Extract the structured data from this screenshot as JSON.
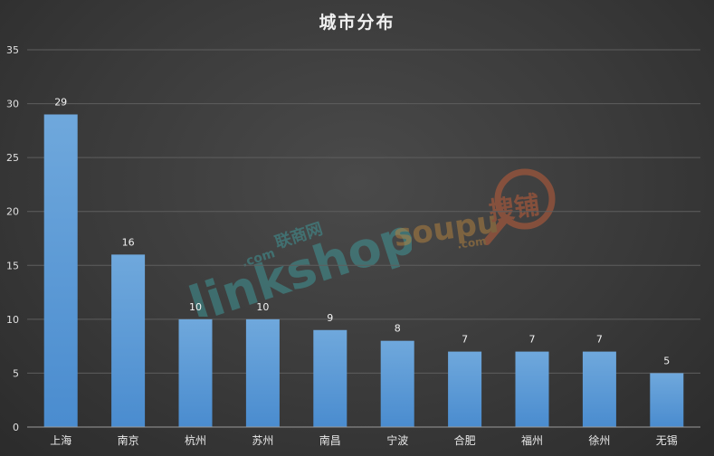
{
  "chart_data": {
    "type": "bar",
    "title": "城市分布",
    "categories": [
      "上海",
      "南京",
      "杭州",
      "苏州",
      "南昌",
      "宁波",
      "合肥",
      "福州",
      "徐州",
      "无锡"
    ],
    "values": [
      29,
      16,
      10,
      10,
      9,
      8,
      7,
      7,
      7,
      5
    ],
    "ylim": [
      0,
      35
    ],
    "yticks": [
      0,
      5,
      10,
      15,
      20,
      25,
      30,
      35
    ],
    "grid": true,
    "bar_color": "#5b9bd5"
  },
  "watermarks": {
    "linkshop": "linkshop",
    "linkshop_com": ".com",
    "linkshop_cn": "联商网",
    "soupu": "soupu",
    "soupu_com": ".com",
    "soupu_cn": "搜铺"
  }
}
